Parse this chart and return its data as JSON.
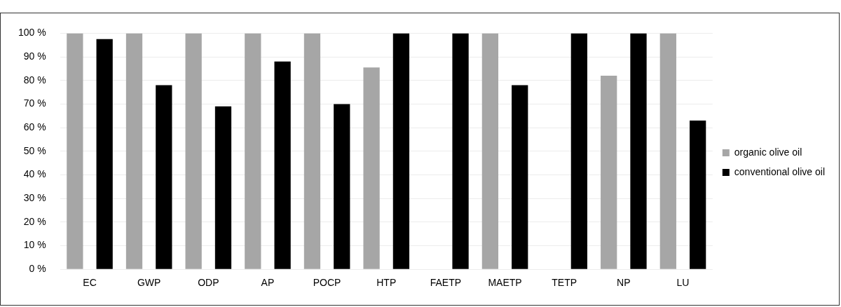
{
  "chart_data": {
    "type": "bar",
    "categories": [
      "EC",
      "GWP",
      "ODP",
      "AP",
      "POCP",
      "HTP",
      "FAETP",
      "MAETP",
      "TETP",
      "NP",
      "LU"
    ],
    "series": [
      {
        "name": "organic olive oil",
        "color": "#a6a6a6",
        "values": [
          100,
          100,
          100,
          100,
          100,
          85.5,
          0,
          100,
          0,
          82,
          100
        ]
      },
      {
        "name": "conventional olive oil",
        "color": "#000000",
        "values": [
          97.5,
          78,
          69,
          88,
          70,
          100,
          100,
          78,
          100,
          100,
          63
        ]
      }
    ],
    "ylim": [
      0,
      100
    ],
    "yticks": [
      {
        "value": 0,
        "label": "0 %"
      },
      {
        "value": 10,
        "label": "10 %"
      },
      {
        "value": 20,
        "label": "20 %"
      },
      {
        "value": 30,
        "label": "30 %"
      },
      {
        "value": 40,
        "label": "40 %"
      },
      {
        "value": 50,
        "label": "50 %"
      },
      {
        "value": 60,
        "label": "60 %"
      },
      {
        "value": 70,
        "label": "70 %"
      },
      {
        "value": 80,
        "label": "80 %"
      },
      {
        "value": 90,
        "label": "90 %"
      },
      {
        "value": 100,
        "label": "100 %"
      }
    ],
    "grid": "y",
    "legend": "right"
  }
}
